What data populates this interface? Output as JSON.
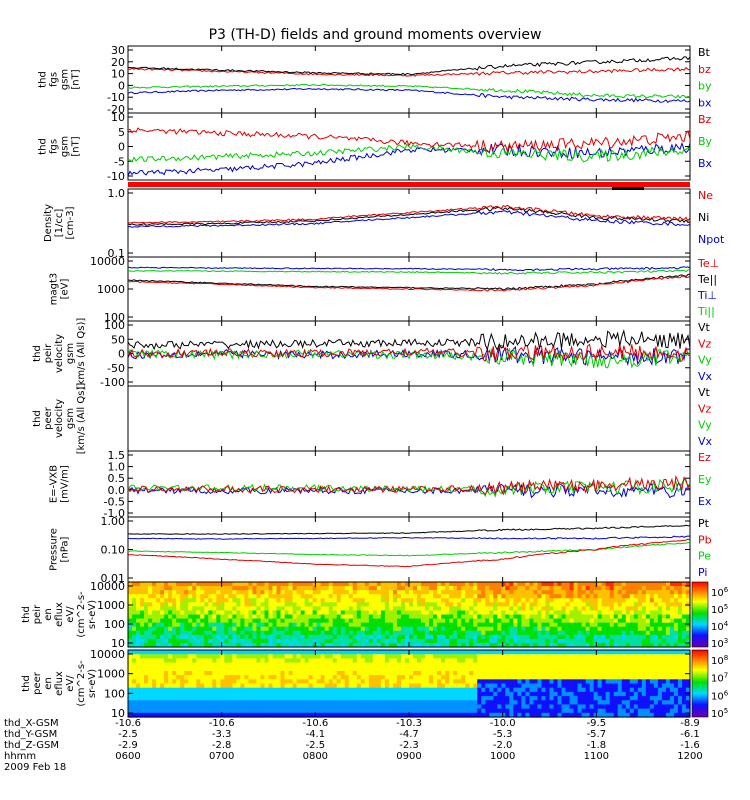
{
  "title": "P3 (TH-D) fields and ground moments overview",
  "panels": [
    {
      "ylabel": [
        "thd",
        "fgs",
        "gsm",
        "[nT]"
      ],
      "ticks": [
        "30",
        "20",
        "10",
        "0",
        "-10",
        "-20"
      ],
      "legend": [
        {
          "text": "Bt",
          "color": "#000000"
        },
        {
          "text": "bz",
          "color": "#dd0000"
        },
        {
          "text": "by",
          "color": "#00cc00"
        },
        {
          "text": "bx",
          "color": "#0000cc"
        }
      ]
    },
    {
      "ylabel": [
        "thd",
        "fgs",
        "gsm",
        "[nT]"
      ],
      "ticks": [
        "10",
        "5",
        "0",
        "-5",
        "-10"
      ],
      "legend": [
        {
          "text": "Bz",
          "color": "#dd0000"
        },
        {
          "text": "By",
          "color": "#00cc00"
        },
        {
          "text": "Bx",
          "color": "#0000cc"
        }
      ]
    },
    {
      "ylabel": [
        "Density",
        "[1/cc]",
        "[cm-3]"
      ],
      "ticks": [
        "1.0",
        "0.1"
      ],
      "legend": [
        {
          "text": "Ne",
          "color": "#dd0000"
        },
        {
          "text": "Ni",
          "color": "#000000"
        },
        {
          "text": "Npot",
          "color": "#0000cc"
        }
      ]
    },
    {
      "ylabel": [
        "magt3",
        "[eV]"
      ],
      "ticks": [
        "10000",
        "1000",
        "100"
      ],
      "legend": [
        {
          "text": "Te⊥",
          "color": "#dd0000"
        },
        {
          "text": "Te||",
          "color": "#000000"
        },
        {
          "text": "Ti⊥",
          "color": "#0000cc"
        },
        {
          "text": "Ti||",
          "color": "#00cc00"
        }
      ]
    },
    {
      "ylabel": [
        "thd",
        "peir",
        "velocity",
        "gsm",
        "[km/s (All Qs)]"
      ],
      "ticks": [
        "100",
        "50",
        "0",
        "-50",
        "-100"
      ],
      "legend": [
        {
          "text": "Vt",
          "color": "#000000"
        },
        {
          "text": "Vz",
          "color": "#dd0000"
        },
        {
          "text": "Vy",
          "color": "#00cc00"
        },
        {
          "text": "Vx",
          "color": "#0000cc"
        }
      ]
    },
    {
      "ylabel": [
        "thd",
        "peer",
        "velocity",
        "gsm",
        "[km/s (All Qs)]"
      ],
      "ticks": [],
      "legend": [
        {
          "text": "Vt",
          "color": "#000000"
        },
        {
          "text": "Vz",
          "color": "#dd0000"
        },
        {
          "text": "Vy",
          "color": "#00cc00"
        },
        {
          "text": "Vx",
          "color": "#0000cc"
        }
      ]
    },
    {
      "ylabel": [
        "E=-VXB",
        "[mV/m]"
      ],
      "ticks": [
        "1.5",
        "1.0",
        "0.5",
        "0.0",
        "-0.5",
        "-1.0"
      ],
      "legend": [
        {
          "text": "Ez",
          "color": "#dd0000"
        },
        {
          "text": "Ey",
          "color": "#00cc00"
        },
        {
          "text": "Ex",
          "color": "#0000cc"
        }
      ]
    },
    {
      "ylabel": [
        "Pressure",
        "[nPa]"
      ],
      "ticks": [
        "1.00",
        "0.10",
        "0.01"
      ],
      "legend": [
        {
          "text": "Pt",
          "color": "#000000"
        },
        {
          "text": "Pb",
          "color": "#dd0000"
        },
        {
          "text": "Pe",
          "color": "#00cc00"
        },
        {
          "text": "Pi",
          "color": "#0000cc"
        }
      ]
    },
    {
      "ylabel": [
        "thd",
        "peir",
        "en",
        "eflux",
        "eV/",
        "(cm^2-s-",
        "sr-eV)"
      ],
      "ticks": [
        "10000",
        "1000",
        "100",
        "10"
      ],
      "colorbar": [
        "10^6",
        "10^5",
        "10^4",
        "10^3"
      ]
    },
    {
      "ylabel": [
        "thd",
        "peer",
        "en",
        "eflux",
        "eV/",
        "(cm^2-s-",
        "sr-eV)"
      ],
      "ticks": [
        "10000",
        "1000",
        "100",
        "10"
      ],
      "colorbar": [
        "10^8",
        "10^7",
        "10^6",
        "10^5"
      ]
    }
  ],
  "xaxis": {
    "rows": [
      {
        "label": "thd_X-GSM",
        "values": [
          "-10.6",
          "-10.6",
          "-10.6",
          "-10.3",
          "-10.0",
          "-9.5",
          "-8.9"
        ]
      },
      {
        "label": "thd_Y-GSM",
        "values": [
          "-2.5",
          "-3.3",
          "-4.1",
          "-4.7",
          "-5.3",
          "-5.7",
          "-6.1"
        ]
      },
      {
        "label": "thd_Z-GSM",
        "values": [
          "-2.9",
          "-2.8",
          "-2.5",
          "-2.3",
          "-2.0",
          "-1.8",
          "-1.6"
        ]
      },
      {
        "label": "hhmm",
        "values": [
          "0600",
          "0700",
          "0800",
          "0900",
          "1000",
          "1100",
          "1200"
        ]
      }
    ],
    "date": "2009 Feb 18"
  },
  "chart_data": {
    "type": "line",
    "title": "P3 (TH-D) fields and ground moments overview",
    "date": "2009 Feb 18",
    "x": [
      "0600",
      "0700",
      "0800",
      "0900",
      "1000",
      "1100",
      "1200"
    ],
    "panels": [
      {
        "ylabel": "thd fgs gsm [nT]",
        "ylim": [
          -20,
          30
        ],
        "series": [
          {
            "name": "Bt",
            "values": [
              14,
              12,
              10,
              9,
              15,
              18,
              21
            ]
          },
          {
            "name": "bz",
            "values": [
              13,
              11,
              9,
              8,
              10,
              11,
              13
            ]
          },
          {
            "name": "by",
            "values": [
              -1,
              0,
              1,
              0,
              -3,
              -7,
              -8
            ]
          },
          {
            "name": "bx",
            "values": [
              -5,
              -3,
              -2,
              -3,
              -8,
              -10,
              -11
            ]
          }
        ]
      },
      {
        "ylabel": "thd fgs gsm [nT]",
        "ylim": [
          -10,
          10
        ],
        "series": [
          {
            "name": "Bz",
            "values": [
              5,
              4,
              3,
              1,
              0,
              1,
              3
            ]
          },
          {
            "name": "By",
            "values": [
              -4,
              -3,
              -2,
              0,
              -2,
              -3,
              -1
            ]
          },
          {
            "name": "Bx",
            "values": [
              -8,
              -7,
              -5,
              -1,
              -1,
              -2,
              0
            ]
          }
        ]
      },
      {
        "ylabel": "Density [1/cc] [cm-3]",
        "ylim": [
          0.1,
          1.0
        ],
        "yscale": "log",
        "series": [
          {
            "name": "Ne",
            "values": [
              0.32,
              0.33,
              0.36,
              0.45,
              0.55,
              0.4,
              0.36
            ]
          },
          {
            "name": "Ni",
            "values": [
              0.3,
              0.31,
              0.34,
              0.42,
              0.52,
              0.38,
              0.34
            ]
          },
          {
            "name": "Npot",
            "values": [
              0.28,
              0.29,
              0.31,
              0.38,
              0.46,
              0.34,
              0.3
            ]
          }
        ]
      },
      {
        "ylabel": "magt3 [eV]",
        "ylim": [
          100,
          10000
        ],
        "yscale": "log",
        "series": [
          {
            "name": "Te⊥",
            "values": [
              1700,
              1400,
              1100,
              1000,
              900,
              1300,
              2500
            ]
          },
          {
            "name": "Te||",
            "values": [
              1900,
              1500,
              1200,
              1100,
              1000,
              1400,
              2700
            ]
          },
          {
            "name": "Ti⊥",
            "values": [
              4700,
              4500,
              4400,
              4300,
              4000,
              4200,
              4600
            ]
          },
          {
            "name": "Ti||",
            "values": [
              3700,
              3600,
              3500,
              3400,
              3100,
              3300,
              3700
            ]
          }
        ]
      },
      {
        "ylabel": "thd peir velocity gsm [km/s (All Qs)]",
        "ylim": [
          -100,
          100
        ],
        "series": [
          {
            "name": "Vt",
            "values": [
              25,
              28,
              30,
              32,
              35,
              45,
              40
            ]
          },
          {
            "name": "Vz",
            "values": [
              0,
              2,
              0,
              5,
              0,
              5,
              0
            ]
          },
          {
            "name": "Vy",
            "values": [
              0,
              -5,
              0,
              -5,
              -10,
              -20,
              -10
            ]
          },
          {
            "name": "Vx",
            "values": [
              -5,
              0,
              -5,
              0,
              -5,
              -10,
              -5
            ]
          }
        ]
      },
      {
        "ylabel": "thd peer velocity gsm [km/s (All Qs)]",
        "series": []
      },
      {
        "ylabel": "E=-VXB [mV/m]",
        "ylim": [
          -1.0,
          1.5
        ],
        "series": [
          {
            "name": "Ez",
            "values": [
              0.05,
              0.05,
              0.05,
              0.05,
              0.1,
              0.2,
              0.3
            ]
          },
          {
            "name": "Ey",
            "values": [
              0.1,
              0.1,
              0.1,
              0.05,
              0.05,
              0.1,
              0.2
            ]
          },
          {
            "name": "Ex",
            "values": [
              0.0,
              0.0,
              0.0,
              0.0,
              0.0,
              0.0,
              0.0
            ]
          }
        ]
      },
      {
        "ylabel": "Pressure [nPa]",
        "ylim": [
          0.01,
          1.0
        ],
        "yscale": "log",
        "series": [
          {
            "name": "Pt",
            "values": [
              0.3,
              0.3,
              0.31,
              0.32,
              0.4,
              0.45,
              0.55
            ]
          },
          {
            "name": "Pb",
            "values": [
              0.07,
              0.05,
              0.035,
              0.03,
              0.05,
              0.1,
              0.2
            ]
          },
          {
            "name": "Pe",
            "values": [
              0.09,
              0.08,
              0.07,
              0.065,
              0.08,
              0.1,
              0.16
            ]
          },
          {
            "name": "Pi",
            "values": [
              0.22,
              0.21,
              0.22,
              0.23,
              0.22,
              0.22,
              0.25
            ]
          }
        ]
      },
      {
        "type": "heatmap",
        "ylabel": "thd peir en eflux eV/(cm^2-s-sr-eV)",
        "ylim": [
          5,
          20000
        ],
        "yscale": "log",
        "colorbar": [
          "10^3",
          "10^6"
        ]
      },
      {
        "type": "heatmap",
        "ylabel": "thd peer en eflux eV/(cm^2-s-sr-eV)",
        "ylim": [
          5,
          20000
        ],
        "yscale": "log",
        "colorbar": [
          "10^5",
          "10^8"
        ]
      }
    ]
  }
}
